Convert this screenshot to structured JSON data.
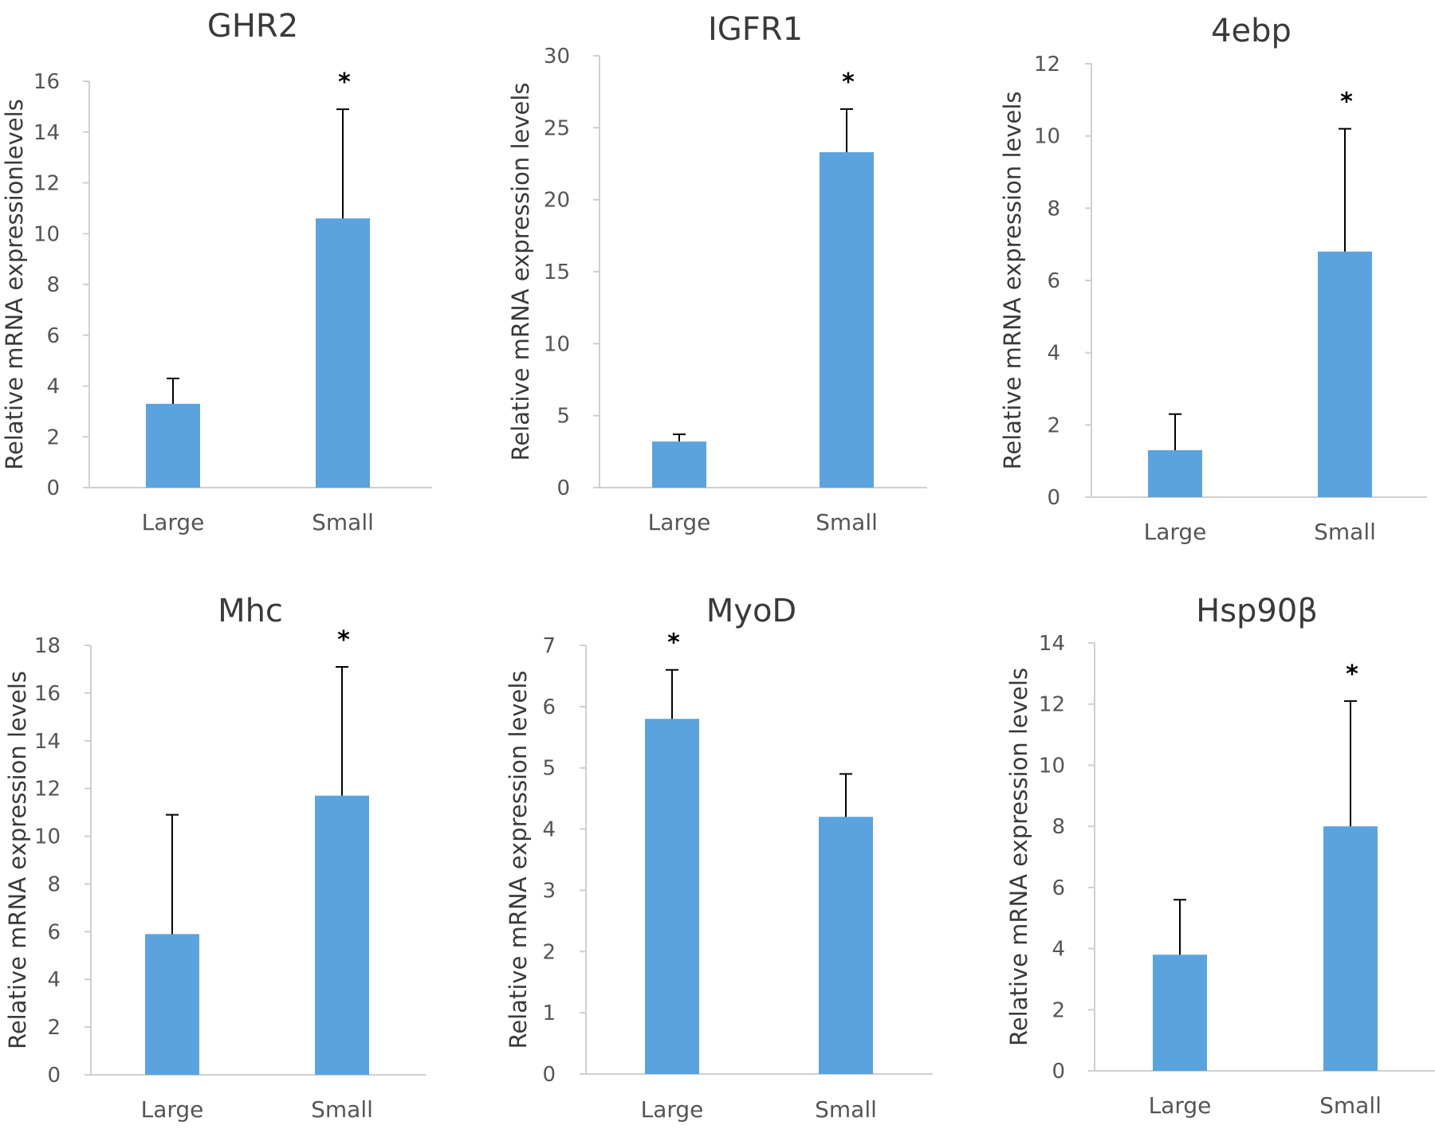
{
  "bar_color": "#5BA3DF",
  "chart_data": [
    {
      "type": "bar",
      "title": "GHR2",
      "ylabel": "Relative mRNA  expressionlevels",
      "categories": [
        "Large",
        "Small"
      ],
      "values": [
        3.3,
        10.6
      ],
      "errors": [
        1.0,
        4.3
      ],
      "significance": [
        "",
        "*"
      ],
      "ylim": [
        0,
        16
      ],
      "yticks": [
        0,
        2,
        4,
        6,
        8,
        10,
        12,
        14,
        16
      ]
    },
    {
      "type": "bar",
      "title": "IGFR1",
      "ylabel": "Relative mRNA expression levels",
      "categories": [
        "Large",
        "Small"
      ],
      "values": [
        3.2,
        23.3
      ],
      "errors": [
        0.5,
        3.0
      ],
      "significance": [
        "",
        "*"
      ],
      "ylim": [
        0,
        30
      ],
      "yticks": [
        0,
        5,
        10,
        15,
        20,
        25,
        30
      ]
    },
    {
      "type": "bar",
      "title": "4ebp",
      "ylabel": "Relative mRNA expression levels",
      "categories": [
        "Large",
        "Small"
      ],
      "values": [
        1.3,
        6.8
      ],
      "errors": [
        1.0,
        3.4
      ],
      "significance": [
        "",
        "*"
      ],
      "ylim": [
        0,
        12
      ],
      "yticks": [
        0,
        2,
        4,
        6,
        8,
        10,
        12
      ]
    },
    {
      "type": "bar",
      "title": "Mhc",
      "ylabel": "Relative mRNA expression levels",
      "categories": [
        "Large",
        "Small"
      ],
      "values": [
        5.9,
        11.7
      ],
      "errors": [
        5.0,
        5.4
      ],
      "significance": [
        "",
        "*"
      ],
      "ylim": [
        0,
        18
      ],
      "yticks": [
        0,
        2,
        4,
        6,
        8,
        10,
        12,
        14,
        16,
        18
      ]
    },
    {
      "type": "bar",
      "title": "MyoD",
      "ylabel": "Relative mRNA expression levels",
      "categories": [
        "Large",
        "Small"
      ],
      "values": [
        5.8,
        4.2
      ],
      "errors": [
        0.8,
        0.7
      ],
      "significance": [
        "*",
        ""
      ],
      "ylim": [
        0,
        7
      ],
      "yticks": [
        0,
        1,
        2,
        3,
        4,
        5,
        6,
        7
      ]
    },
    {
      "type": "bar",
      "title": "Hsp90β",
      "ylabel": "Relative mRNA expression levels",
      "categories": [
        "Large",
        "Small"
      ],
      "values": [
        3.8,
        8.0
      ],
      "errors": [
        1.8,
        4.1
      ],
      "significance": [
        "",
        "*"
      ],
      "ylim": [
        0,
        14
      ],
      "yticks": [
        0,
        2,
        4,
        6,
        8,
        10,
        12,
        14
      ]
    }
  ]
}
